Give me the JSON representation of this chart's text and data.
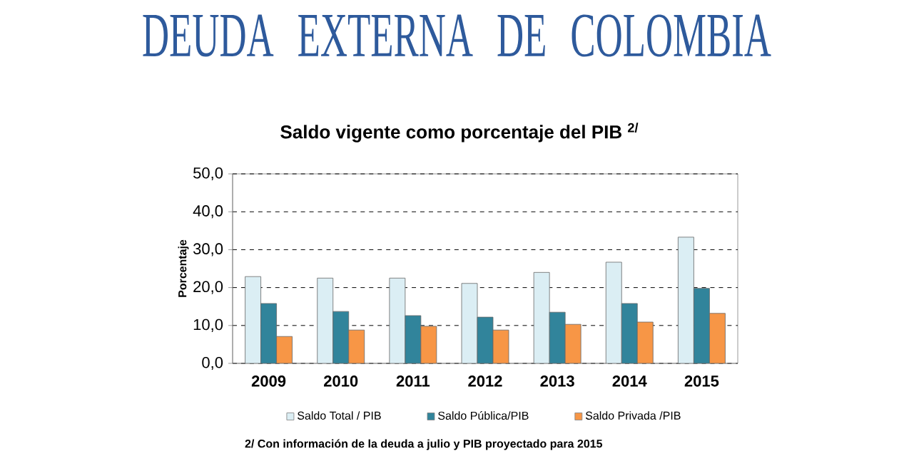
{
  "chart_data": {
    "type": "bar",
    "title": "DEUDA EXTERNA DE COLOMBIA",
    "subtitle": "Saldo vigente como porcentaje del PIB $^{2/}$",
    "ylabel": "Porcentaje",
    "categories": [
      "2009",
      "2010",
      "2011",
      "2012",
      "2013",
      "2014",
      "2015"
    ],
    "series": [
      {
        "name": "Saldo Total / PIB",
        "color": "#dbeef4",
        "values": [
          22.9,
          22.5,
          22.5,
          21.1,
          24.0,
          26.7,
          33.3
        ]
      },
      {
        "name": "Saldo Pública/PIB",
        "color": "#31849b",
        "values": [
          15.8,
          13.7,
          12.6,
          12.2,
          13.5,
          15.8,
          19.8
        ]
      },
      {
        "name": "Saldo Privada /PIB",
        "color": "#f79646",
        "values": [
          7.1,
          8.8,
          9.8,
          8.8,
          10.3,
          10.9,
          13.2
        ]
      }
    ],
    "ylim": [
      0,
      50
    ],
    "yticks": [
      {
        "value": 0,
        "label": "0,0"
      },
      {
        "value": 10,
        "label": "10,0"
      },
      {
        "value": 20,
        "label": "20,0"
      },
      {
        "value": 30,
        "label": "30,0"
      },
      {
        "value": 40,
        "label": "40,0"
      },
      {
        "value": 50,
        "label": "50,0"
      }
    ],
    "grid": "y",
    "legend": "bottom",
    "annotations": [
      "2/ Con información de la deuda a julio y PIB proyectado para  2015"
    ]
  }
}
